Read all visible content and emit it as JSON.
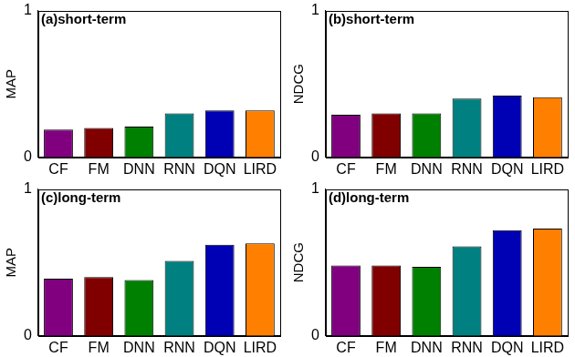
{
  "chart_data": [
    {
      "type": "bar",
      "title": "(a)short-term",
      "ylabel": "MAP",
      "categories": [
        "CF",
        "FM",
        "DNN",
        "RNN",
        "DQN",
        "LIRD"
      ],
      "values": [
        0.19,
        0.2,
        0.21,
        0.3,
        0.32,
        0.32
      ],
      "colors": [
        "#800080",
        "#800000",
        "#008000",
        "#008080",
        "#0000b4",
        "#ff8000"
      ],
      "ylim": [
        0,
        1
      ],
      "yticks": [
        0,
        1
      ],
      "grid": false
    },
    {
      "type": "bar",
      "title": "(b)short-term",
      "ylabel": "NDCG",
      "categories": [
        "CF",
        "FM",
        "DNN",
        "RNN",
        "DQN",
        "LIRD"
      ],
      "values": [
        0.29,
        0.3,
        0.3,
        0.4,
        0.42,
        0.41
      ],
      "colors": [
        "#800080",
        "#800000",
        "#008000",
        "#008080",
        "#0000b4",
        "#ff8000"
      ],
      "ylim": [
        0,
        1
      ],
      "yticks": [
        0,
        1
      ],
      "grid": false
    },
    {
      "type": "bar",
      "title": "(c)long-term",
      "ylabel": "MAP",
      "categories": [
        "CF",
        "FM",
        "DNN",
        "RNN",
        "DQN",
        "LIRD"
      ],
      "values": [
        0.39,
        0.4,
        0.38,
        0.51,
        0.62,
        0.63
      ],
      "colors": [
        "#800080",
        "#800000",
        "#008000",
        "#008080",
        "#0000b4",
        "#ff8000"
      ],
      "ylim": [
        0,
        1
      ],
      "yticks": [
        0,
        1
      ],
      "grid": false
    },
    {
      "type": "bar",
      "title": "(d)long-term",
      "ylabel": "NDCG",
      "categories": [
        "CF",
        "FM",
        "DNN",
        "RNN",
        "DQN",
        "LIRD"
      ],
      "values": [
        0.48,
        0.48,
        0.47,
        0.61,
        0.72,
        0.73
      ],
      "colors": [
        "#800080",
        "#800000",
        "#008000",
        "#008080",
        "#0000b4",
        "#ff8000"
      ],
      "ylim": [
        0,
        1
      ],
      "yticks": [
        0,
        1
      ],
      "grid": false
    }
  ]
}
